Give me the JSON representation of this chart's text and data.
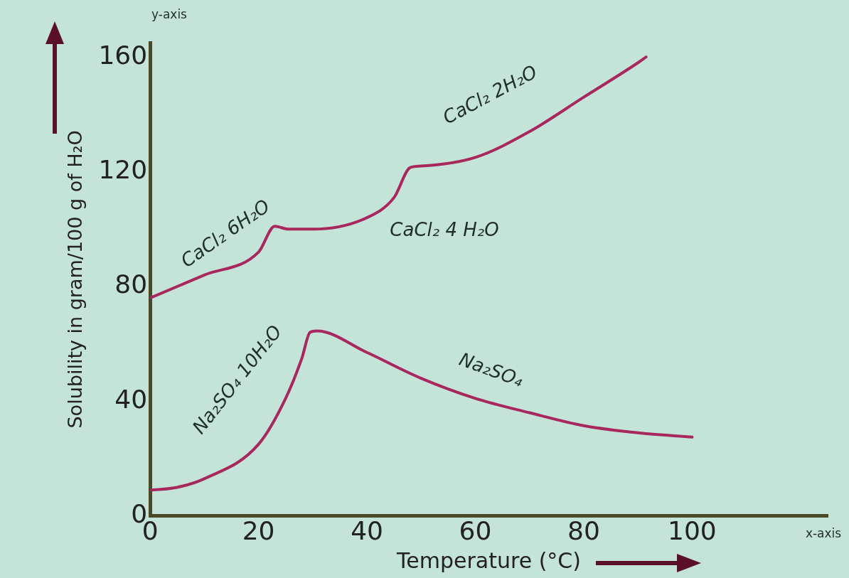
{
  "chart_data": {
    "type": "line",
    "xlabel": "Temperature (°C)",
    "ylabel": "Solubility in gram/100 g of H₂O",
    "xlim": [
      0,
      125
    ],
    "xticks": [
      0,
      20,
      40,
      60,
      80,
      100
    ],
    "ylim": [
      0,
      165
    ],
    "yticks": [
      0,
      40,
      80,
      120,
      160
    ],
    "grid": false,
    "series": [
      {
        "color": "#a8285e",
        "x": [
          0,
          10,
          20,
          23,
          25.5,
          30,
          40,
          45,
          48,
          50,
          60,
          70,
          80,
          90,
          91.5
        ],
        "values": [
          76,
          84,
          92,
          101,
          100,
          100,
          104,
          111,
          121.5,
          122,
          125,
          134,
          146,
          158,
          160
        ]
      },
      {
        "color": "#a8285e",
        "x": [
          0,
          5,
          10,
          20,
          25,
          28,
          29.5,
          30.8,
          40,
          50,
          60,
          70,
          80,
          90,
          100
        ],
        "values": [
          9,
          10,
          13,
          25,
          41,
          55,
          64,
          64.5,
          57,
          48,
          41,
          36,
          31.5,
          29,
          27.5
        ]
      }
    ],
    "annotations": [
      "y-axis",
      "x-axis",
      "CaCl₂ 6H₂O",
      "CaCl₂ 4 H₂O",
      "CaCl₂ 2H₂O",
      "Na₂SO₄ 10H₂O",
      "Na₂SO₄"
    ]
  }
}
